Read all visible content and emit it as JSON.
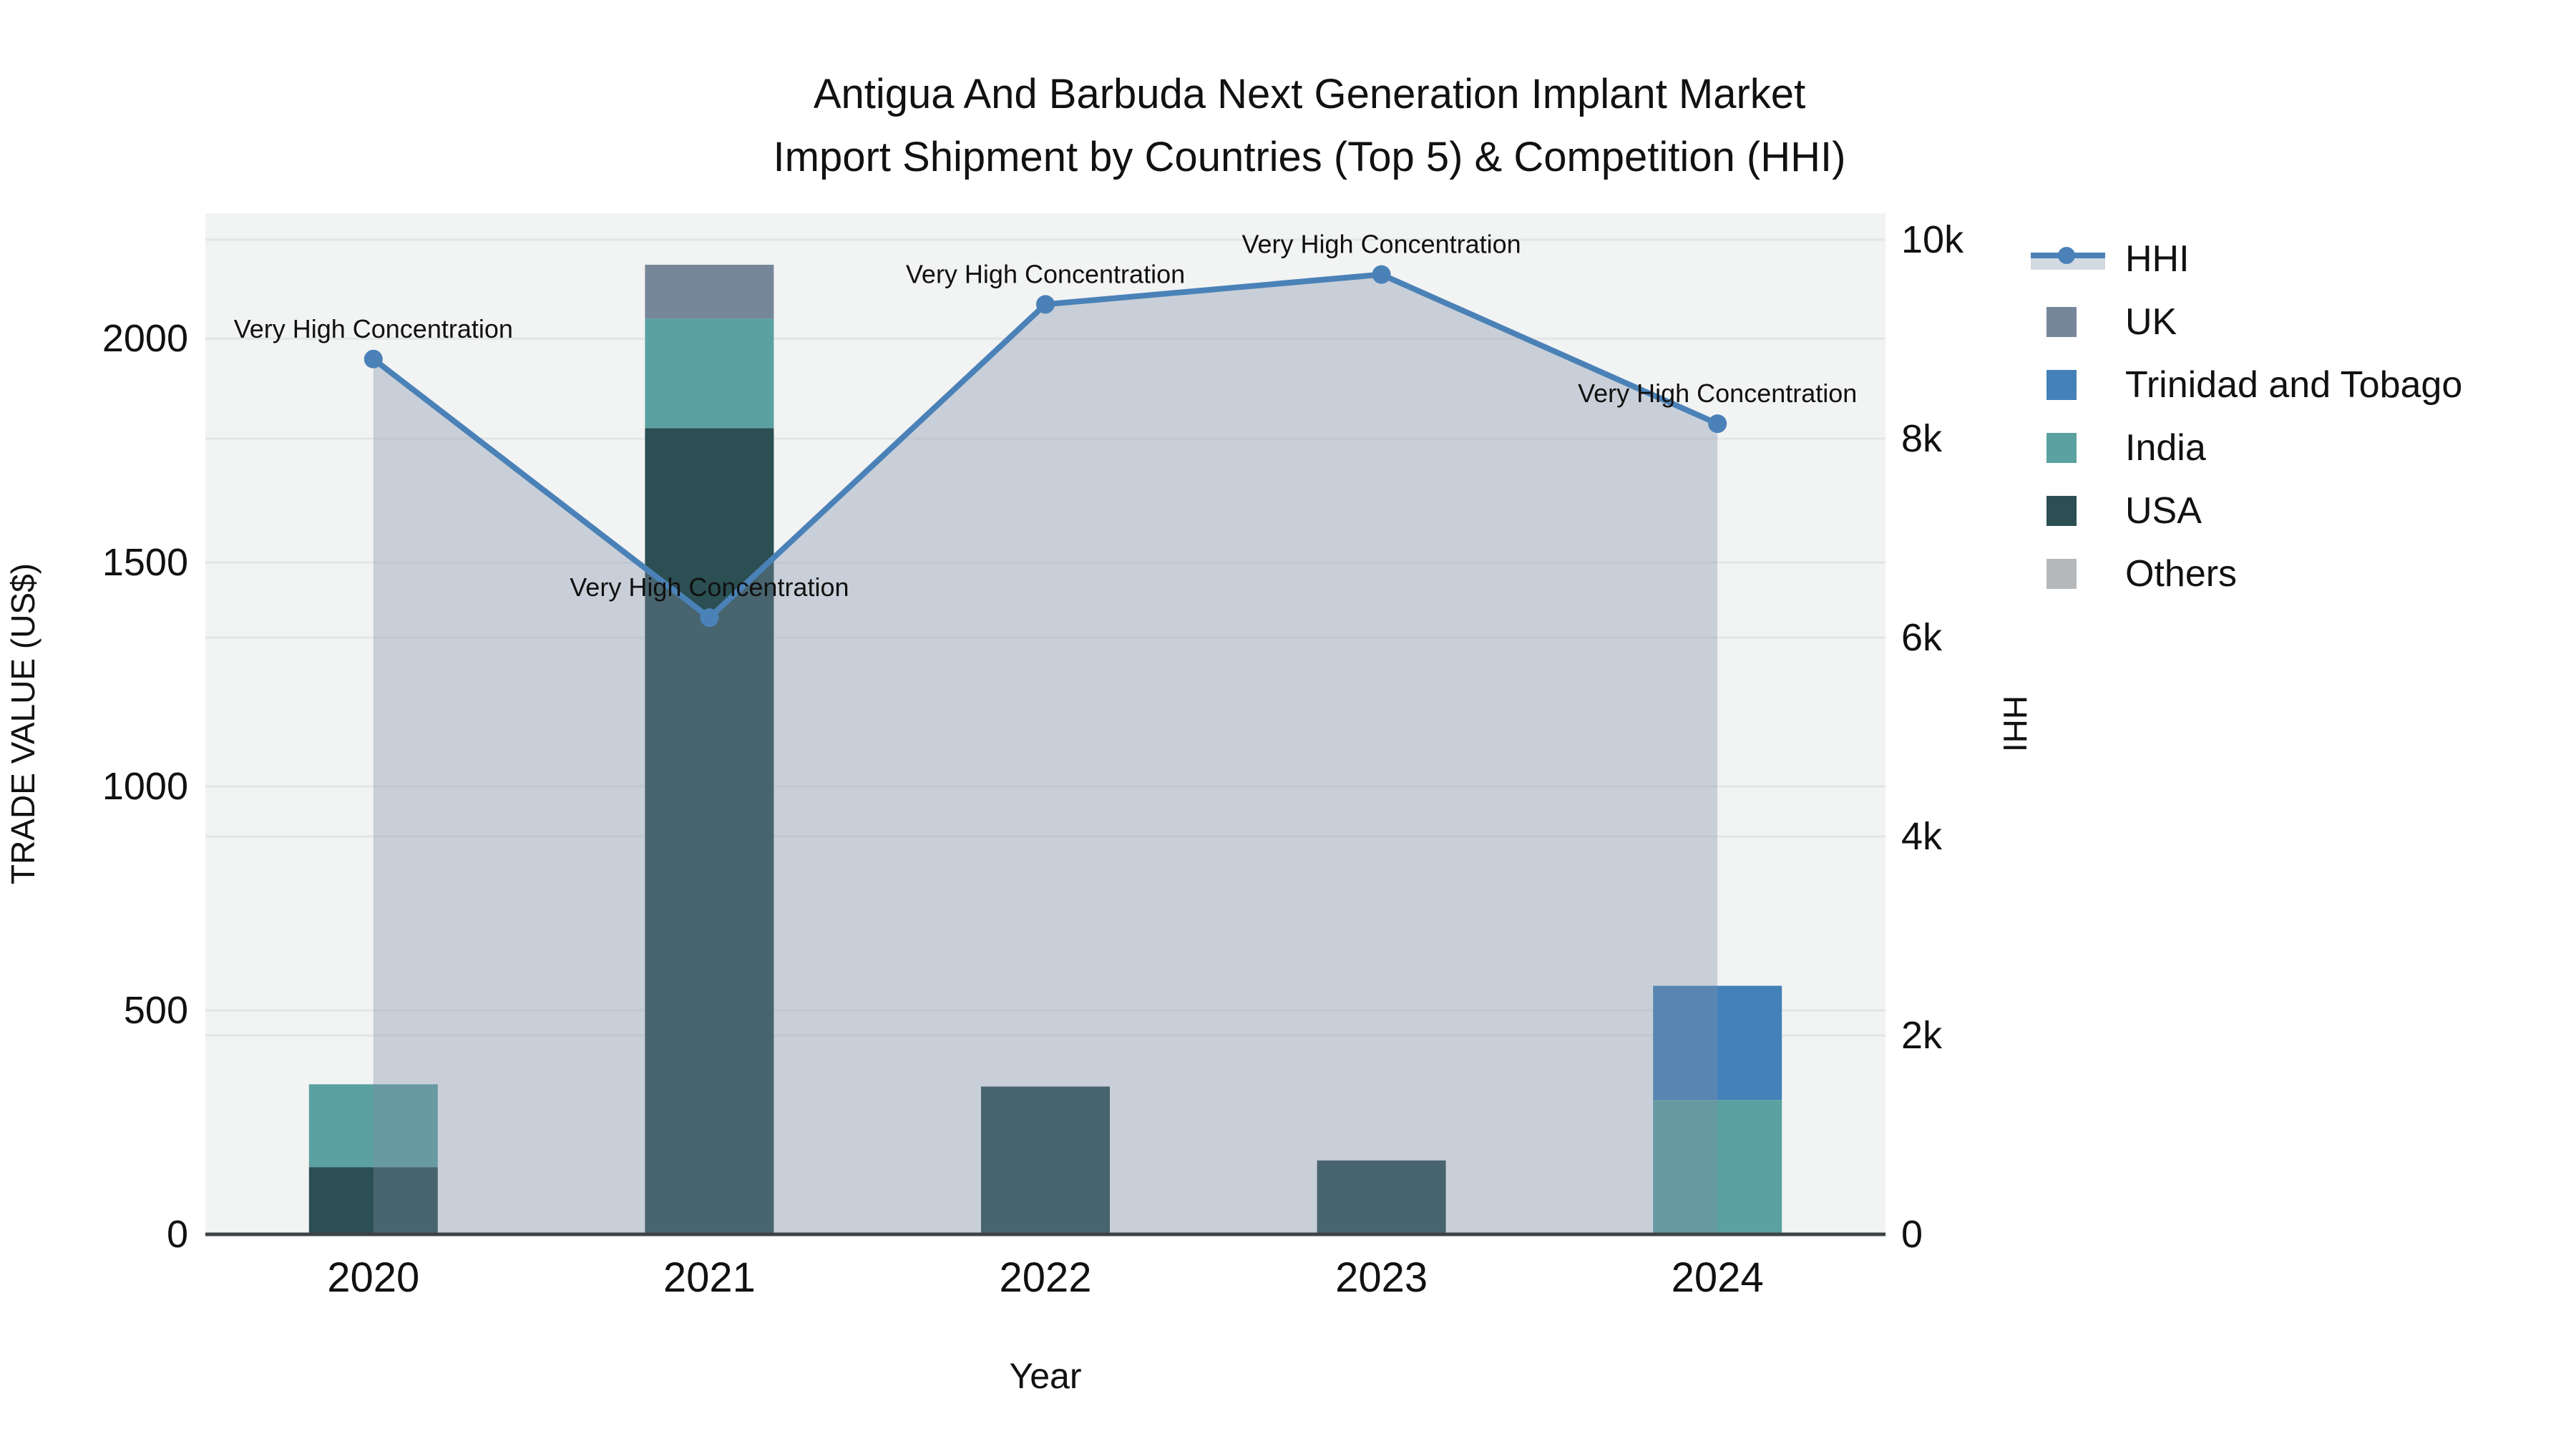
{
  "title": {
    "line1": "Antigua And Barbuda Next Generation Implant Market",
    "line2": "Import Shipment by Countries (Top 5) & Competition (HHI)"
  },
  "colors": {
    "plot_background": "#f2f3f3",
    "gridline": "#e4e6e6",
    "axis_line": "#3d4345",
    "text": "#111111",
    "hhi_line": "#4a82b8",
    "hhi_area_fill": "rgba(125,140,165,0.35)",
    "hhi_legend_band": "#d3d9e2",
    "uk": "#76879a",
    "trinidad_and_tobago": "#4481b8",
    "india": "#5ba1a1",
    "usa": "#2b4f52",
    "others": "#b5b8ba"
  },
  "legend": {
    "items": [
      {
        "label": "HHI",
        "type": "line",
        "color": "#4a82b8"
      },
      {
        "label": "UK",
        "type": "square",
        "color": "#76879a"
      },
      {
        "label": "Trinidad and Tobago",
        "type": "square",
        "color": "#4481b8"
      },
      {
        "label": "India",
        "type": "square",
        "color": "#5ba1a1"
      },
      {
        "label": "USA",
        "type": "square",
        "color": "#2b4f52"
      },
      {
        "label": "Others",
        "type": "square",
        "color": "#b5b8ba"
      }
    ]
  },
  "chart_data": {
    "type": "composed-bar-line",
    "categories": [
      "2020",
      "2021",
      "2022",
      "2023",
      "2024"
    ],
    "bar_series": [
      {
        "name": "USA",
        "color": "#2b4f52",
        "values": [
          150,
          1800,
          330,
          165,
          0
        ]
      },
      {
        "name": "India",
        "color": "#5ba1a1",
        "values": [
          185,
          245,
          0,
          0,
          300
        ]
      },
      {
        "name": "Trinidad and Tobago",
        "color": "#4481b8",
        "values": [
          0,
          0,
          0,
          0,
          255
        ]
      },
      {
        "name": "UK",
        "color": "#76879a",
        "values": [
          0,
          120,
          0,
          0,
          0
        ]
      },
      {
        "name": "Others",
        "color": "#b5b8ba",
        "values": [
          0,
          0,
          0,
          0,
          0
        ]
      }
    ],
    "line_series": {
      "name": "HHI",
      "color": "#4a82b8",
      "area_fill": "rgba(125,140,165,0.35)",
      "values": [
        8800,
        6200,
        9350,
        9650,
        8150
      ]
    },
    "annotations": [
      {
        "x": "2020",
        "text": "Very High Concentration"
      },
      {
        "x": "2021",
        "text": "Very High Concentration"
      },
      {
        "x": "2022",
        "text": "Very High Concentration"
      },
      {
        "x": "2023",
        "text": "Very High Concentration"
      },
      {
        "x": "2024",
        "text": "Very High Concentration"
      }
    ],
    "left_axis": {
      "label": "TRADE VALUE (US$)",
      "tick_labels": [
        "0",
        "500",
        "1000",
        "1500",
        "2000"
      ],
      "tick_values": [
        0,
        500,
        1000,
        1500,
        2000
      ],
      "max": 2280
    },
    "right_axis": {
      "label": "HHI",
      "tick_labels": [
        "0",
        "2k",
        "4k",
        "6k",
        "8k",
        "10k"
      ],
      "tick_values": [
        0,
        2000,
        4000,
        6000,
        8000,
        10000
      ],
      "max": 10266
    },
    "x_axis": {
      "label": "Year"
    },
    "grid": true,
    "legend_position": "right-outside"
  }
}
